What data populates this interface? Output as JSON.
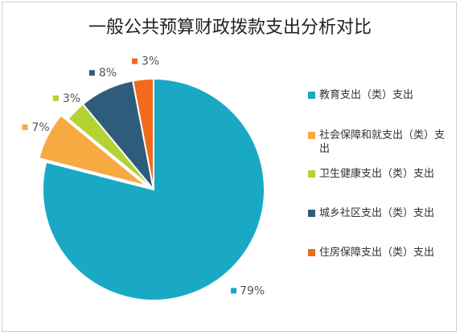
{
  "chart_data": {
    "type": "pie",
    "title": "一般公共预算财政拨款支出分析对比",
    "categories": [
      "教育支出（类）支出",
      "社会保障和就支出（类）支出",
      "卫生健康支出（类）支出",
      "城乡社区支出（类）支出",
      "住房保障支出（类）支出"
    ],
    "values": [
      79,
      7,
      3,
      8,
      3
    ],
    "data_labels": [
      "79%",
      "7%",
      "3%",
      "8%",
      "3%"
    ],
    "colors": [
      "#1aa9c4",
      "#f7a942",
      "#b3d334",
      "#2e5d7b",
      "#f26a1b"
    ],
    "exploded": [
      false,
      true,
      false,
      false,
      false
    ],
    "legend_position": "right",
    "start_angle_deg": 0,
    "direction": "clockwise"
  }
}
